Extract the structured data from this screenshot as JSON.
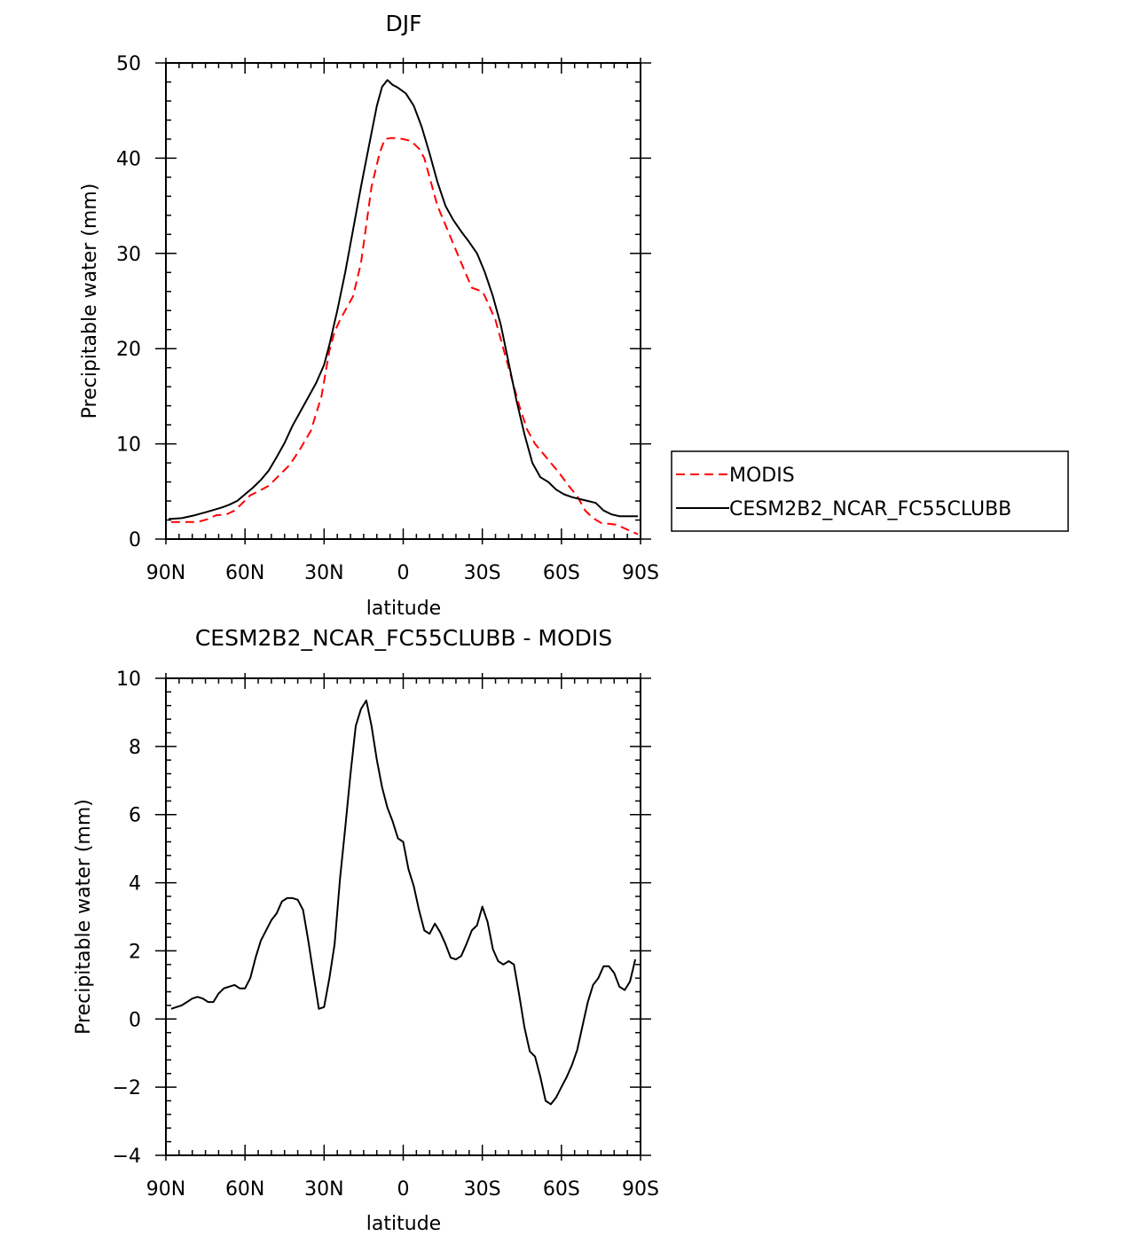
{
  "chart_data": [
    {
      "type": "line",
      "title": "DJF",
      "xlabel": "latitude",
      "ylabel": "Precipitable water (mm)",
      "xlim": [
        -90,
        90
      ],
      "ylim": [
        0,
        50
      ],
      "x_ticks": [
        {
          "value": -90,
          "label": "90N"
        },
        {
          "value": -60,
          "label": "60N"
        },
        {
          "value": -30,
          "label": "30N"
        },
        {
          "value": 0,
          "label": "0"
        },
        {
          "value": 30,
          "label": "30S"
        },
        {
          "value": 60,
          "label": "60S"
        },
        {
          "value": 90,
          "label": "90S"
        }
      ],
      "y_ticks": [
        {
          "value": 0,
          "label": "0"
        },
        {
          "value": 10,
          "label": "10"
        },
        {
          "value": 20,
          "label": "20"
        },
        {
          "value": 30,
          "label": "30"
        },
        {
          "value": 40,
          "label": "40"
        },
        {
          "value": 50,
          "label": "50"
        }
      ],
      "legend": {
        "placement": "right"
      },
      "series": [
        {
          "name": "MODIS",
          "color": "#ff0000",
          "dash": "dashed",
          "x": [
            -88,
            -84,
            -78,
            -74,
            -71,
            -67,
            -64,
            -62,
            -58,
            -55,
            -51,
            -47,
            -43,
            -39,
            -35,
            -31,
            -28,
            -26,
            -24,
            -22,
            -19,
            -16,
            -14,
            -12,
            -9,
            -7,
            -5,
            -3,
            0,
            3,
            6,
            8,
            10,
            13,
            16,
            19,
            22,
            26,
            30,
            31,
            35,
            38,
            41,
            44,
            47,
            50,
            53,
            56,
            59,
            63,
            66,
            69,
            72,
            75,
            78,
            81,
            85,
            89
          ],
          "y": [
            1.8,
            1.8,
            1.8,
            2.1,
            2.5,
            2.6,
            3.0,
            3.5,
            4.6,
            5.0,
            5.6,
            6.7,
            7.8,
            9.5,
            11.4,
            15.0,
            19.8,
            21.8,
            23.0,
            24.0,
            25.5,
            29.0,
            33.0,
            37.0,
            40.5,
            42.0,
            42.1,
            42.1,
            42.0,
            41.8,
            41.0,
            40.0,
            38.0,
            35.0,
            33.0,
            31.0,
            29.0,
            26.4,
            26.0,
            25.5,
            23.0,
            20.0,
            17.0,
            14.0,
            11.5,
            10.0,
            9.0,
            8.0,
            7.0,
            5.5,
            4.5,
            3.0,
            2.2,
            1.7,
            1.6,
            1.5,
            1.0,
            0.5
          ]
        },
        {
          "name": "CESM2B2_NCAR_FC55CLUBB",
          "color": "#000000",
          "dash": "solid",
          "x": [
            -89,
            -84,
            -79,
            -74,
            -69,
            -66,
            -63,
            -60,
            -57,
            -54,
            -51,
            -48,
            -45,
            -42,
            -39,
            -36,
            -33,
            -30,
            -28,
            -25,
            -22,
            -19,
            -16,
            -13,
            -10,
            -8,
            -6,
            -4,
            -2,
            1,
            4,
            7,
            10,
            13,
            16,
            19,
            22,
            25,
            28,
            31,
            34,
            37,
            40,
            43,
            46,
            49,
            52,
            55,
            58,
            61,
            64,
            67,
            70,
            73,
            76,
            79,
            82,
            85,
            89
          ],
          "y": [
            2.1,
            2.2,
            2.5,
            2.9,
            3.3,
            3.6,
            4.0,
            4.7,
            5.4,
            6.2,
            7.2,
            8.6,
            10.1,
            11.9,
            13.4,
            14.9,
            16.4,
            18.3,
            20.4,
            24.0,
            28.0,
            32.5,
            37.0,
            41.3,
            45.5,
            47.5,
            48.2,
            47.7,
            47.4,
            46.8,
            45.5,
            43.3,
            40.5,
            37.5,
            35.0,
            33.5,
            32.3,
            31.2,
            30.0,
            28.0,
            25.5,
            22.5,
            18.5,
            14.5,
            11.0,
            8.0,
            6.5,
            6.0,
            5.2,
            4.7,
            4.4,
            4.2,
            4.0,
            3.8,
            3.0,
            2.6,
            2.4,
            2.4,
            2.4
          ]
        }
      ]
    },
    {
      "type": "line",
      "title": "CESM2B2_NCAR_FC55CLUBB - MODIS",
      "xlabel": "latitude",
      "ylabel": "Precipitable water (mm)",
      "xlim": [
        -90,
        90
      ],
      "ylim": [
        -4,
        10
      ],
      "x_ticks": [
        {
          "value": -90,
          "label": "90N"
        },
        {
          "value": -60,
          "label": "60N"
        },
        {
          "value": -30,
          "label": "30N"
        },
        {
          "value": 0,
          "label": "0"
        },
        {
          "value": 30,
          "label": "30S"
        },
        {
          "value": 60,
          "label": "60S"
        },
        {
          "value": 90,
          "label": "90S"
        }
      ],
      "y_ticks": [
        {
          "value": -4,
          "label": "−4"
        },
        {
          "value": -2,
          "label": "−2"
        },
        {
          "value": 0,
          "label": "0"
        },
        {
          "value": 2,
          "label": "2"
        },
        {
          "value": 4,
          "label": "4"
        },
        {
          "value": 6,
          "label": "6"
        },
        {
          "value": 8,
          "label": "8"
        },
        {
          "value": 10,
          "label": "10"
        }
      ],
      "series": [
        {
          "color": "#000000",
          "dash": "solid",
          "x": [
            -88,
            -86,
            -84,
            -82,
            -80,
            -78,
            -76,
            -74,
            -72,
            -70,
            -68,
            -66,
            -64,
            -62,
            -60,
            -58,
            -56,
            -54,
            -52,
            -50,
            -48,
            -46,
            -44,
            -42,
            -40,
            -38,
            -36,
            -34,
            -32,
            -30,
            -28,
            -26,
            -24,
            -22,
            -20,
            -18,
            -16,
            -14,
            -12,
            -10,
            -8,
            -6,
            -4,
            -2,
            0,
            2,
            4,
            6,
            8,
            10,
            12,
            14,
            16,
            18,
            20,
            22,
            24,
            26,
            28,
            30,
            32,
            34,
            36,
            38,
            40,
            42,
            44,
            46,
            48,
            50,
            52,
            54,
            56,
            58,
            60,
            62,
            64,
            66,
            68,
            70,
            72,
            74,
            76,
            78,
            80,
            82,
            84,
            86,
            88
          ],
          "y": [
            0.3,
            0.35,
            0.4,
            0.5,
            0.6,
            0.65,
            0.6,
            0.5,
            0.5,
            0.75,
            0.9,
            0.95,
            1.0,
            0.9,
            0.9,
            1.2,
            1.8,
            2.3,
            2.6,
            2.9,
            3.1,
            3.45,
            3.55,
            3.55,
            3.5,
            3.2,
            2.3,
            1.3,
            0.3,
            0.35,
            1.2,
            2.2,
            4.1,
            5.6,
            7.2,
            8.6,
            9.1,
            9.35,
            8.6,
            7.6,
            6.8,
            6.2,
            5.8,
            5.3,
            5.2,
            4.4,
            3.9,
            3.2,
            2.6,
            2.5,
            2.8,
            2.55,
            2.2,
            1.8,
            1.75,
            1.85,
            2.2,
            2.6,
            2.75,
            3.3,
            2.85,
            2.05,
            1.7,
            1.6,
            1.7,
            1.6,
            0.7,
            -0.25,
            -0.95,
            -1.1,
            -1.7,
            -2.4,
            -2.5,
            -2.3,
            -2.0,
            -1.7,
            -1.35,
            -0.9,
            -0.2,
            0.5,
            1.0,
            1.2,
            1.55,
            1.55,
            1.35,
            0.95,
            0.85,
            1.1,
            1.75
          ]
        }
      ]
    }
  ]
}
